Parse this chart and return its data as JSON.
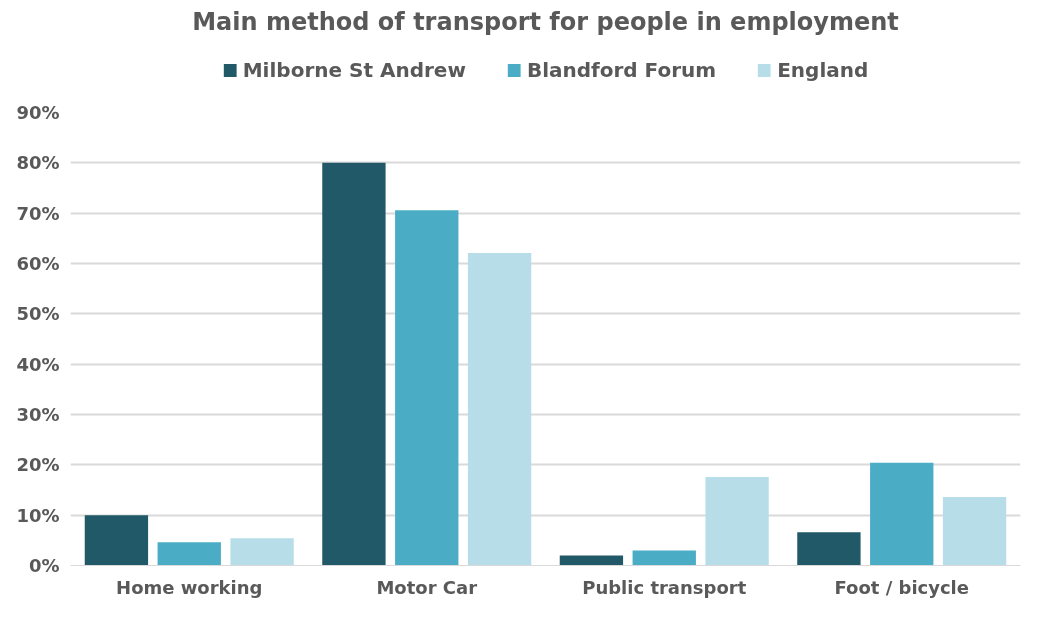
{
  "chart_data": {
    "type": "bar",
    "title": "Main method of transport for people in employment",
    "categories": [
      "Home working",
      "Motor Car",
      "Public transport",
      "Foot / bicycle"
    ],
    "series": [
      {
        "name": "Milborne St Andrew",
        "color": "#215968",
        "values": [
          10,
          80,
          2,
          6.6
        ]
      },
      {
        "name": "Blandford Forum",
        "color": "#4bacc6",
        "values": [
          4.6,
          70.6,
          3,
          20.4
        ]
      },
      {
        "name": "England",
        "color": "#b7dee8",
        "values": [
          5.4,
          62.1,
          17.6,
          13.6
        ]
      }
    ],
    "ylim": [
      0,
      90
    ],
    "yticks": [
      {
        "value": 0,
        "label": "0%"
      },
      {
        "value": 10,
        "label": "10%"
      },
      {
        "value": 20,
        "label": "20%"
      },
      {
        "value": 30,
        "label": "30%"
      },
      {
        "value": 40,
        "label": "40%"
      },
      {
        "value": 50,
        "label": "50%"
      },
      {
        "value": 60,
        "label": "60%"
      },
      {
        "value": 70,
        "label": "70%"
      },
      {
        "value": 80,
        "label": "80%"
      },
      {
        "value": 90,
        "label": "90%"
      }
    ],
    "grid": "y",
    "legend": "top"
  }
}
